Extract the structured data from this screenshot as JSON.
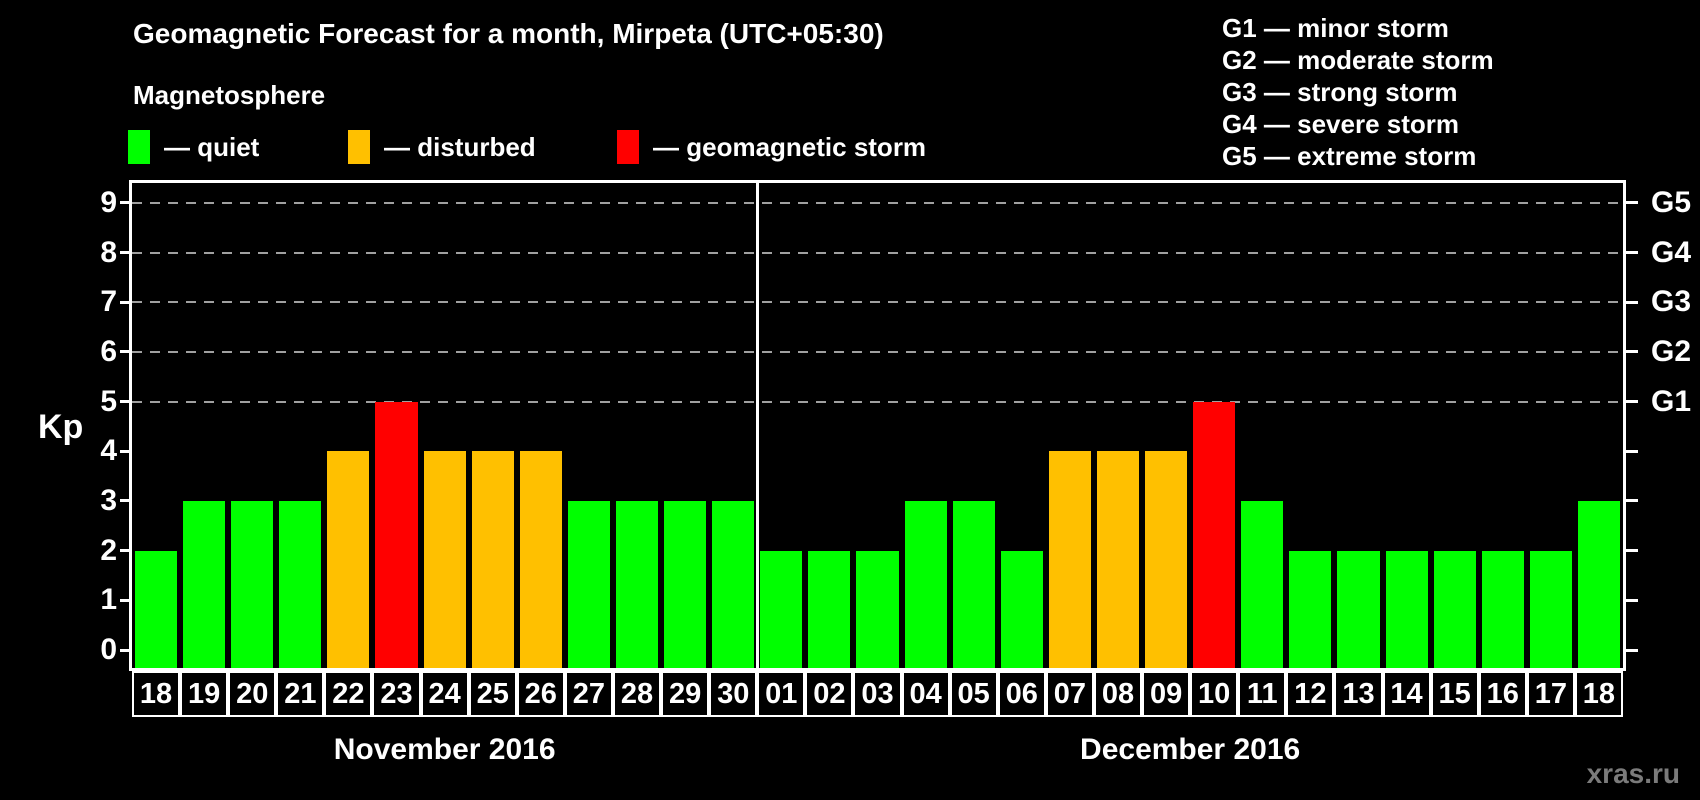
{
  "title": "Geomagnetic Forecast for a month, Mirpeta (UTC+05:30)",
  "legend": {
    "heading": "Magnetosphere",
    "items": [
      {
        "name": "quiet",
        "label": "— quiet",
        "color": "#00ff00"
      },
      {
        "name": "disturbed",
        "label": "— disturbed",
        "color": "#ffc000"
      },
      {
        "name": "storm",
        "label": "— geomagnetic storm",
        "color": "#ff0000"
      }
    ]
  },
  "g_legend": [
    "G1 — minor storm",
    "G2 — moderate storm",
    "G3 — strong storm",
    "G4 — severe storm",
    "G5 — extreme storm"
  ],
  "watermark": "xras.ru",
  "chart_data": {
    "type": "bar",
    "title": "Geomagnetic Forecast for a month, Mirpeta (UTC+05:30)",
    "ylabel": "Kp",
    "ylim": [
      0,
      9
    ],
    "y_ticks": [
      0,
      1,
      2,
      3,
      4,
      5,
      6,
      7,
      8,
      9
    ],
    "gridlines_at_kp": [
      5,
      6,
      7,
      8,
      9
    ],
    "grid": "dashed-horizontal",
    "right_axis": [
      {
        "kp": 5,
        "label": "G1"
      },
      {
        "kp": 6,
        "label": "G2"
      },
      {
        "kp": 7,
        "label": "G3"
      },
      {
        "kp": 8,
        "label": "G4"
      },
      {
        "kp": 9,
        "label": "G5"
      }
    ],
    "status_colors": {
      "quiet": "#00ff00",
      "disturbed": "#ffc000",
      "storm": "#ff0000"
    },
    "months": [
      {
        "label": "November 2016",
        "days": [
          {
            "day": "18",
            "kp": 2,
            "status": "quiet"
          },
          {
            "day": "19",
            "kp": 3,
            "status": "quiet"
          },
          {
            "day": "20",
            "kp": 3,
            "status": "quiet"
          },
          {
            "day": "21",
            "kp": 3,
            "status": "quiet"
          },
          {
            "day": "22",
            "kp": 4,
            "status": "disturbed"
          },
          {
            "day": "23",
            "kp": 5,
            "status": "storm"
          },
          {
            "day": "24",
            "kp": 4,
            "status": "disturbed"
          },
          {
            "day": "25",
            "kp": 4,
            "status": "disturbed"
          },
          {
            "day": "26",
            "kp": 4,
            "status": "disturbed"
          },
          {
            "day": "27",
            "kp": 3,
            "status": "quiet"
          },
          {
            "day": "28",
            "kp": 3,
            "status": "quiet"
          },
          {
            "day": "29",
            "kp": 3,
            "status": "quiet"
          },
          {
            "day": "30",
            "kp": 3,
            "status": "quiet"
          }
        ]
      },
      {
        "label": "December 2016",
        "days": [
          {
            "day": "01",
            "kp": 2,
            "status": "quiet"
          },
          {
            "day": "02",
            "kp": 2,
            "status": "quiet"
          },
          {
            "day": "03",
            "kp": 2,
            "status": "quiet"
          },
          {
            "day": "04",
            "kp": 3,
            "status": "quiet"
          },
          {
            "day": "05",
            "kp": 3,
            "status": "quiet"
          },
          {
            "day": "06",
            "kp": 2,
            "status": "quiet"
          },
          {
            "day": "07",
            "kp": 4,
            "status": "disturbed"
          },
          {
            "day": "08",
            "kp": 4,
            "status": "disturbed"
          },
          {
            "day": "09",
            "kp": 4,
            "status": "disturbed"
          },
          {
            "day": "10",
            "kp": 5,
            "status": "storm"
          },
          {
            "day": "11",
            "kp": 3,
            "status": "quiet"
          },
          {
            "day": "12",
            "kp": 2,
            "status": "quiet"
          },
          {
            "day": "13",
            "kp": 2,
            "status": "quiet"
          },
          {
            "day": "14",
            "kp": 2,
            "status": "quiet"
          },
          {
            "day": "15",
            "kp": 2,
            "status": "quiet"
          },
          {
            "day": "16",
            "kp": 2,
            "status": "quiet"
          },
          {
            "day": "17",
            "kp": 2,
            "status": "quiet"
          },
          {
            "day": "18",
            "kp": 3,
            "status": "quiet"
          }
        ]
      }
    ]
  }
}
